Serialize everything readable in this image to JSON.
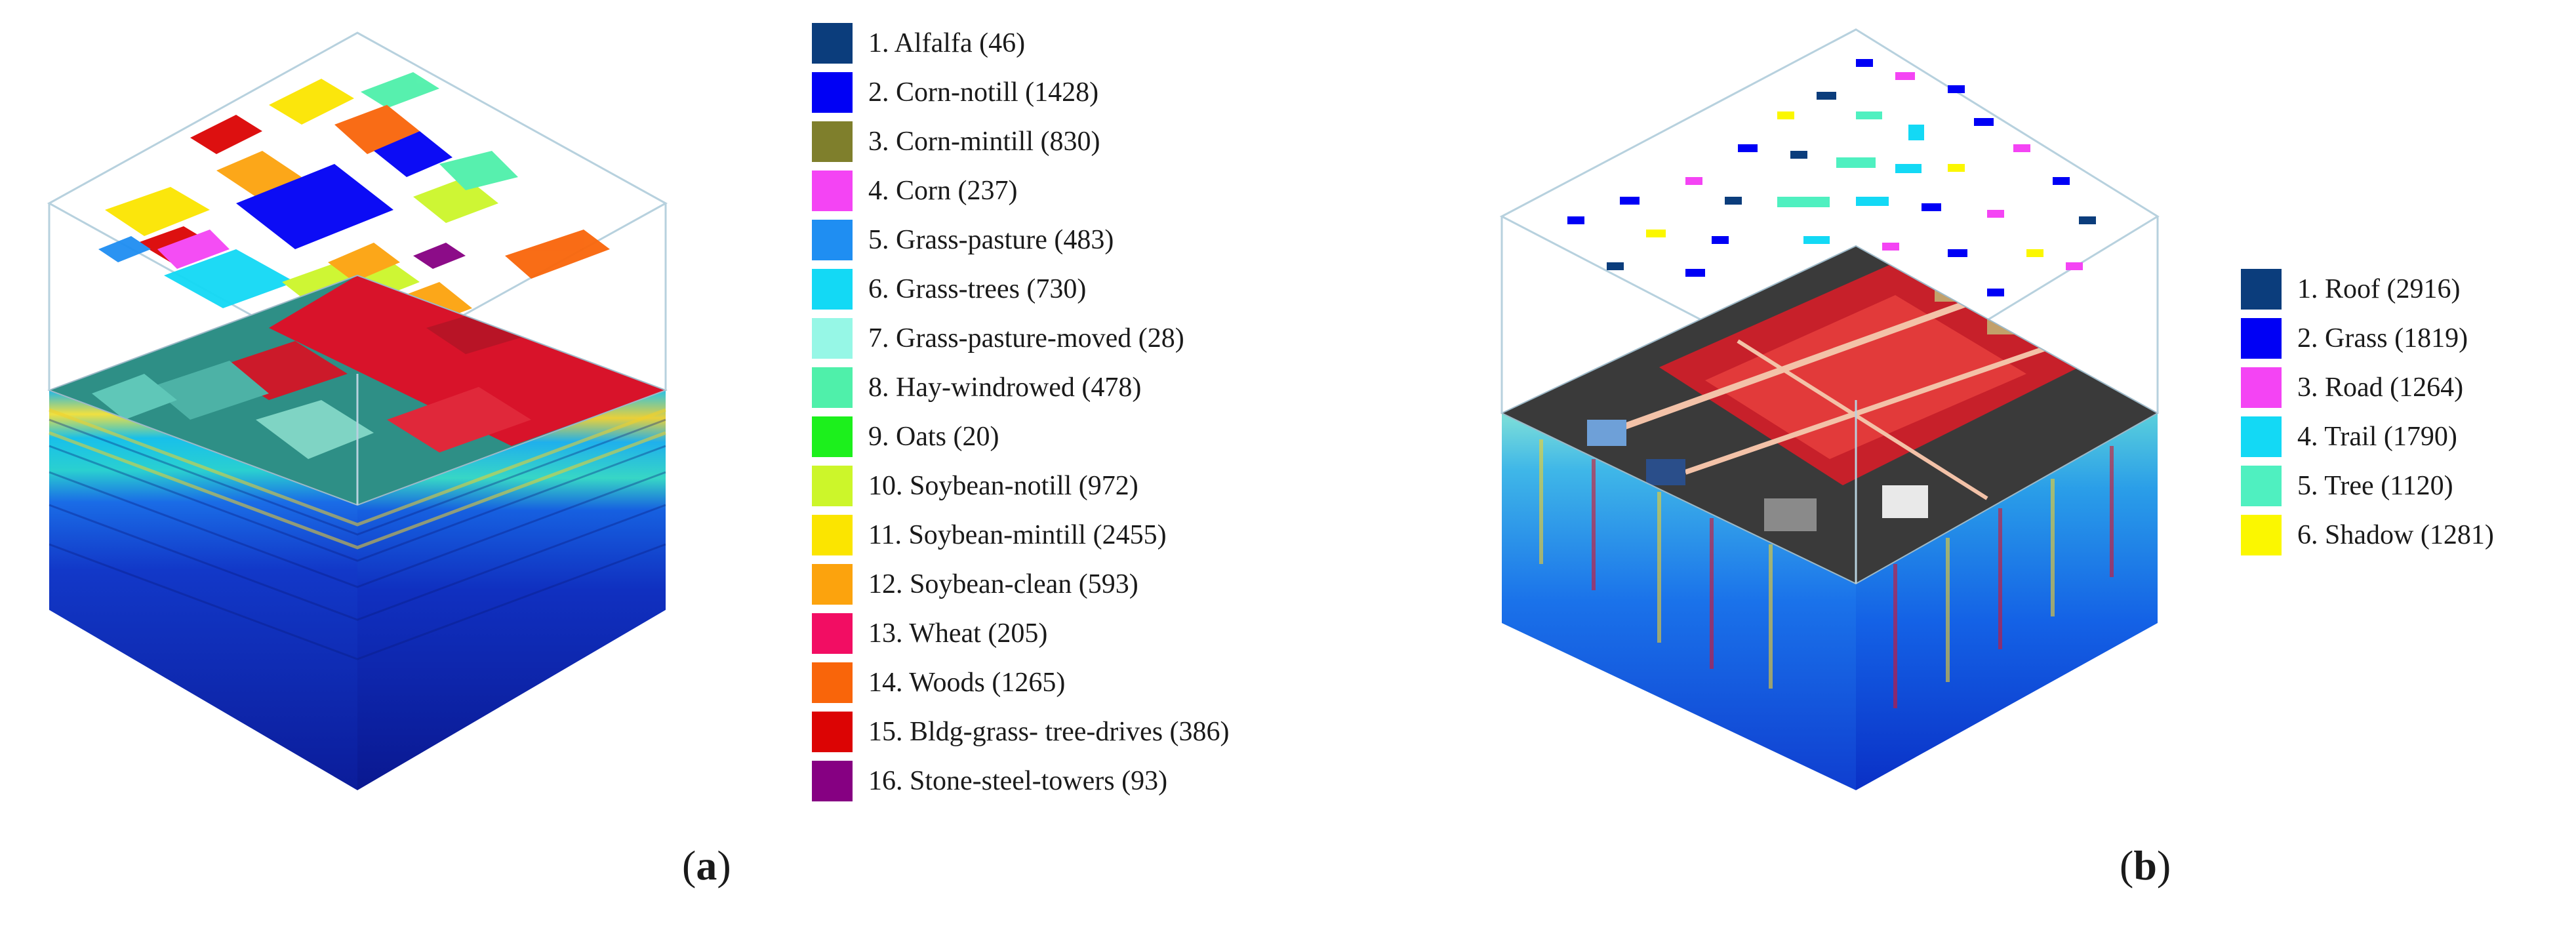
{
  "panels": [
    {
      "id": "a",
      "label": "a",
      "legend": [
        {
          "text": "1. Alfalfa (46)",
          "color": "#0b3d7c"
        },
        {
          "text": "2. Corn-notill (1428)",
          "color": "#0000f5"
        },
        {
          "text": "3. Corn-mintill (830)",
          "color": "#7f7f2c"
        },
        {
          "text": "4. Corn (237)",
          "color": "#f444f4"
        },
        {
          "text": "5. Grass-pasture (483)",
          "color": "#1f8ef2"
        },
        {
          "text": "6. Grass-trees (730)",
          "color": "#13d9f5"
        },
        {
          "text": "7. Grass-pasture-moved (28)",
          "color": "#96f7e6"
        },
        {
          "text": "8. Hay-windrowed (478)",
          "color": "#4ff0aa"
        },
        {
          "text": "9. Oats (20)",
          "color": "#1cf01c"
        },
        {
          "text": "10. Soybean-notill (972)",
          "color": "#ccf62a"
        },
        {
          "text": "11. Soybean-mintill (2455)",
          "color": "#fbe500"
        },
        {
          "text": "12. Soybean-clean (593)",
          "color": "#fca30d"
        },
        {
          "text": "13. Wheat (205)",
          "color": "#f20d63"
        },
        {
          "text": "14. Woods (1265)",
          "color": "#f9650a"
        },
        {
          "text": "15. Bldg-grass- tree-drives (386)",
          "color": "#dc0404"
        },
        {
          "text": "16. Stone-steel-towers (93)",
          "color": "#860082"
        }
      ]
    },
    {
      "id": "b",
      "label": "b",
      "legend": [
        {
          "text": "1. Roof (2916)",
          "color": "#0b3d7c"
        },
        {
          "text": "2. Grass (1819)",
          "color": "#0000f5"
        },
        {
          "text": "3. Road (1264)",
          "color": "#f444f4"
        },
        {
          "text": "4. Trail (1790)",
          "color": "#13d9f5"
        },
        {
          "text": "5. Tree (1120)",
          "color": "#4ff0c0"
        },
        {
          "text": "6. Shadow (1281)",
          "color": "#fbf700"
        }
      ]
    }
  ]
}
